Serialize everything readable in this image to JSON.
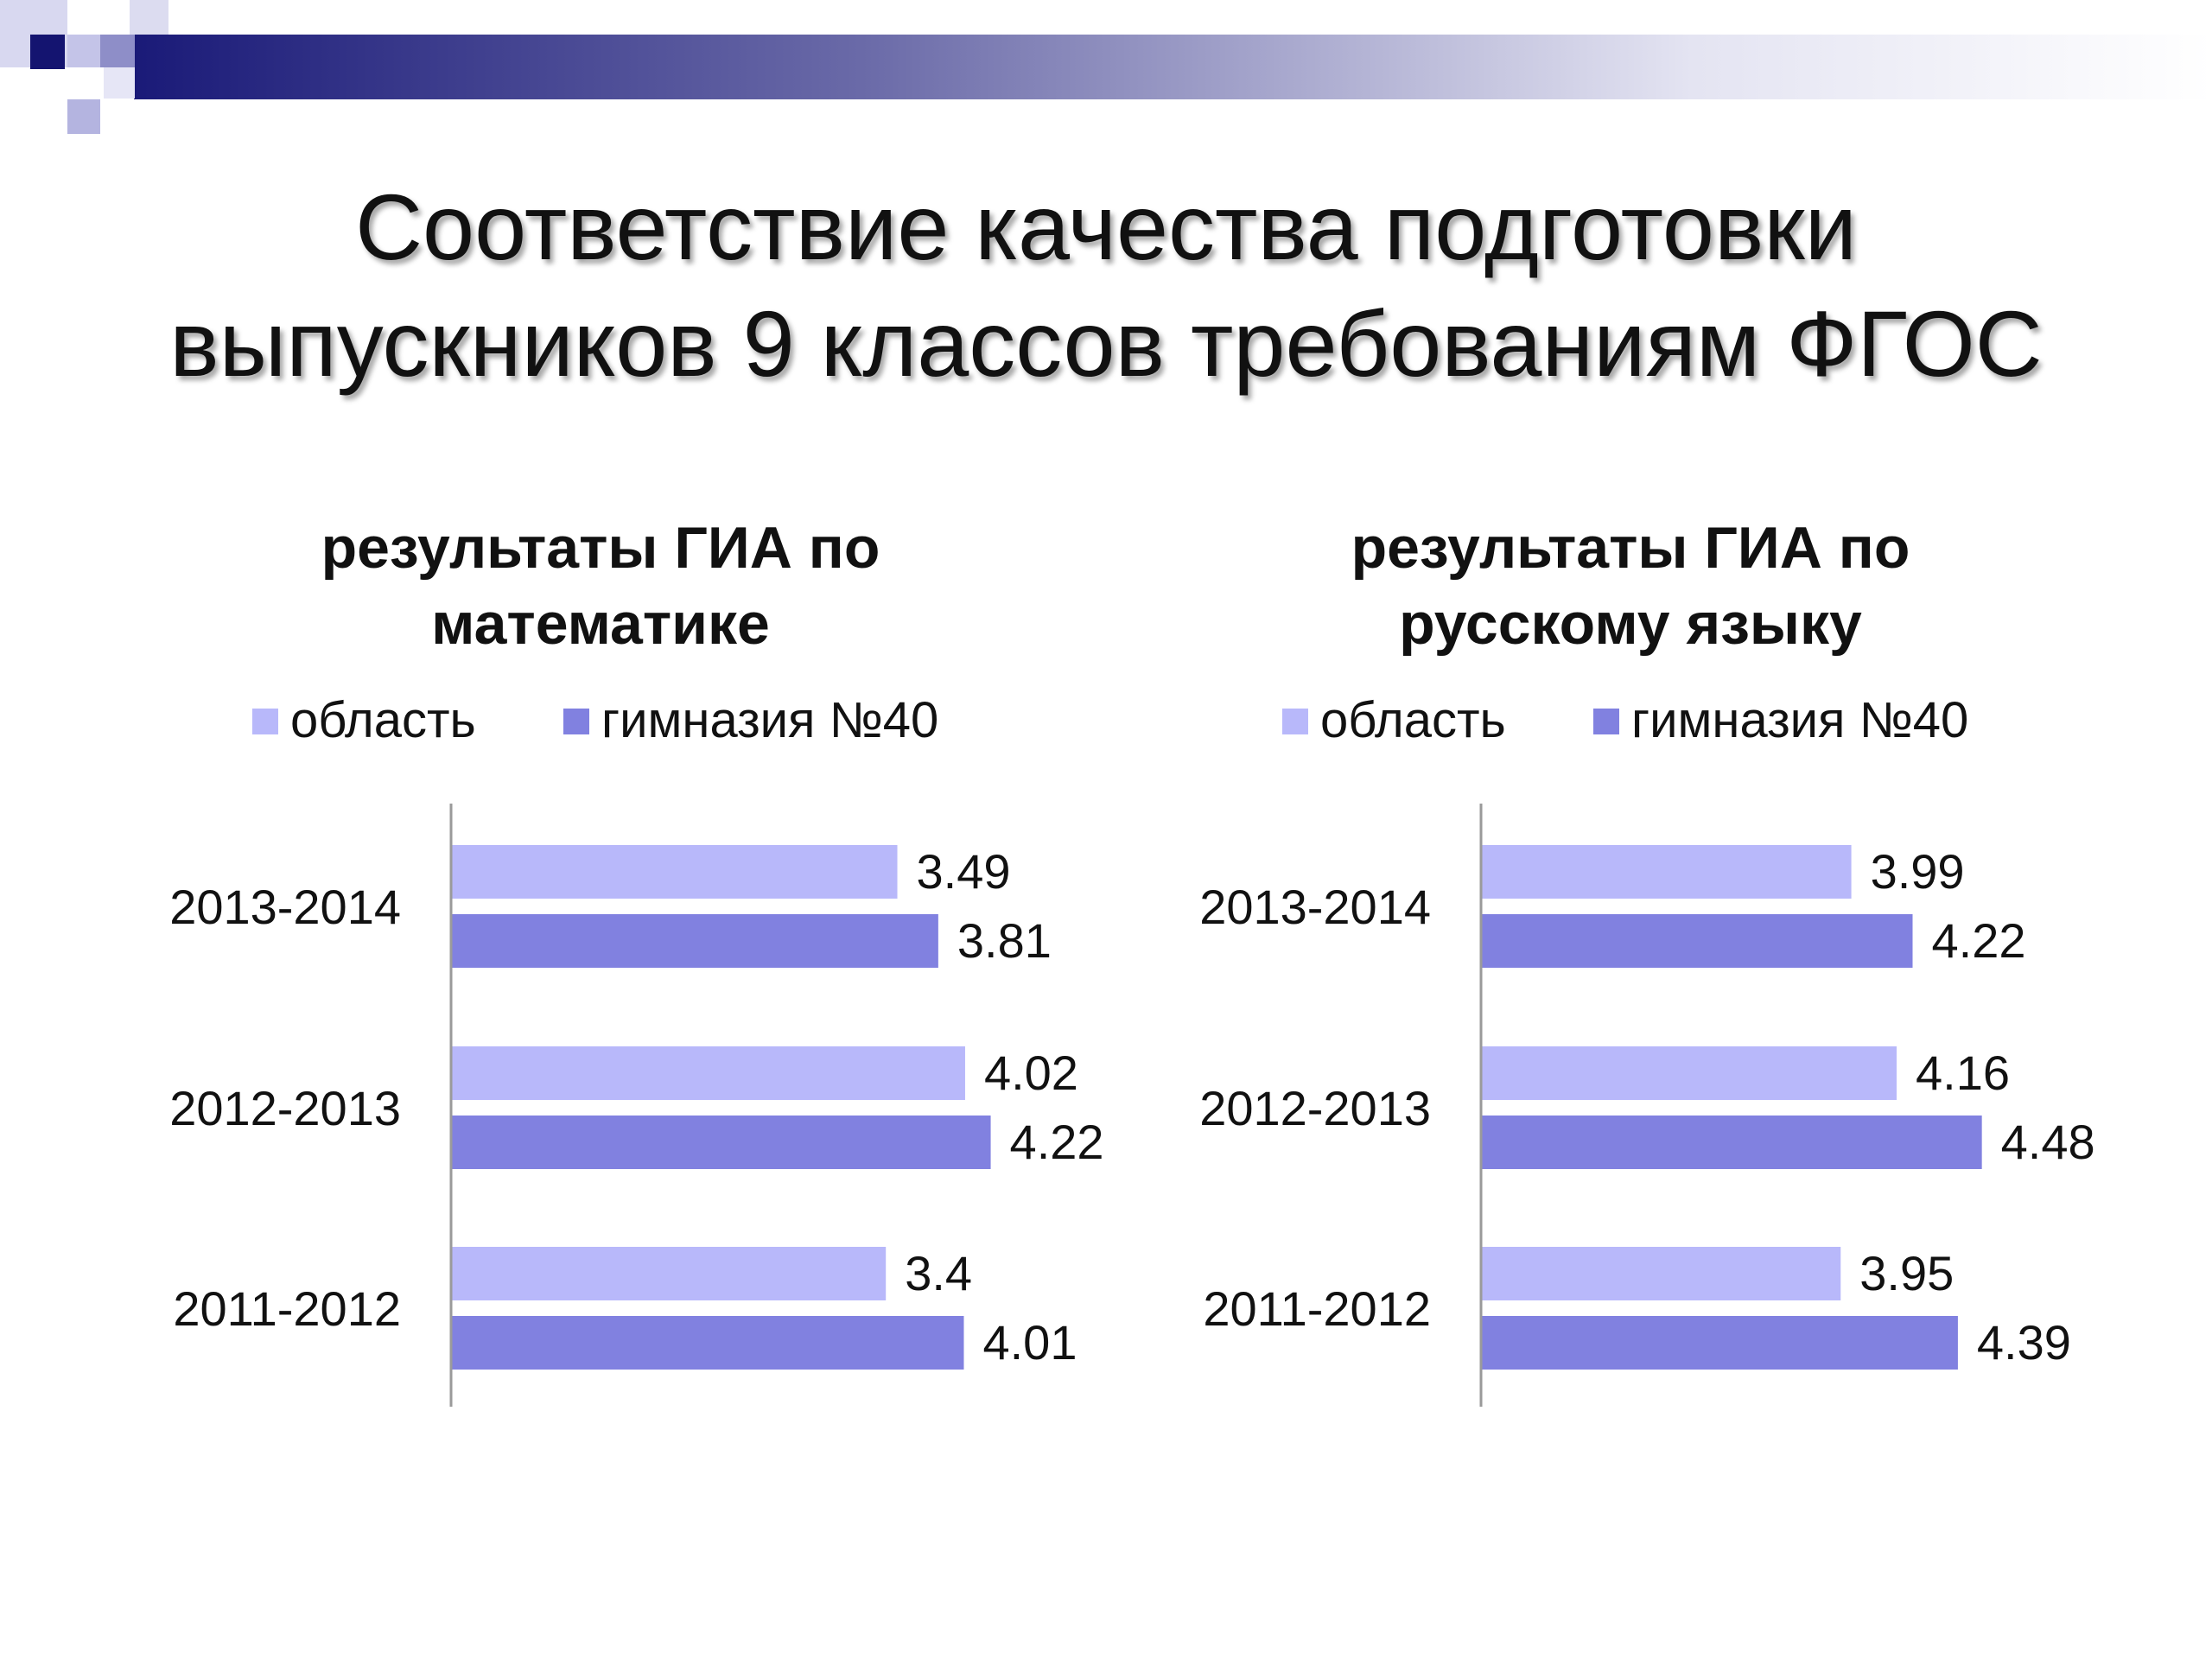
{
  "slide": {
    "title_line1": "Соответствие качества подготовки",
    "title_line2": "выпускников 9 классов требованиям ФГОС"
  },
  "colors": {
    "region": "#b8b8fa",
    "school": "#8181e0",
    "deco_dark": "#1a1a78",
    "deco_light": "#c8c8ec"
  },
  "chart_data": [
    {
      "type": "bar",
      "orientation": "horizontal",
      "title_line1": "результаты ГИА по",
      "title_line2": "математике",
      "categories": [
        "2013-2014",
        "2012-2013",
        "2011-2012"
      ],
      "series": [
        {
          "name": "область",
          "values": [
            3.49,
            4.02,
            3.4
          ]
        },
        {
          "name": "гимназия №40",
          "values": [
            3.81,
            4.22,
            4.01
          ]
        }
      ],
      "xlim": [
        0,
        5
      ],
      "legend": "top",
      "grid": false
    },
    {
      "type": "bar",
      "orientation": "horizontal",
      "title_line1": "результаты ГИА по",
      "title_line2": "русскому языку",
      "categories": [
        "2013-2014",
        "2012-2013",
        "2011-2012"
      ],
      "series": [
        {
          "name": "область",
          "values": [
            3.99,
            4.16,
            3.95
          ]
        },
        {
          "name": "гимназия №40",
          "values": [
            4.22,
            4.48,
            4.39
          ]
        }
      ],
      "xlim": [
        2.6,
        5
      ],
      "legend": "top",
      "grid": false
    }
  ]
}
